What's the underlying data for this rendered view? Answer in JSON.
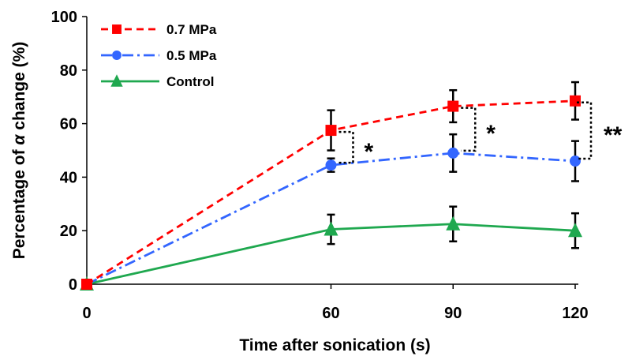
{
  "chart_data": {
    "type": "line",
    "xlabel": "Time after sonication (s)",
    "ylabel_prefix": "Percentage of ",
    "ylabel_symbol": "α",
    "ylabel_suffix": " change (%)",
    "x": [
      0,
      60,
      90,
      120
    ],
    "xticks": [
      "0",
      "60",
      "90",
      "120"
    ],
    "xlim": [
      0,
      120
    ],
    "ylim": [
      0,
      100
    ],
    "yticks": [
      "0",
      "20",
      "40",
      "60",
      "80",
      "100"
    ],
    "grid": false,
    "legend_position": "top-left",
    "series": [
      {
        "name": "0.7 MPa",
        "color": "#ff0000",
        "marker": "square",
        "line_style": "dashed",
        "values": [
          0,
          57.5,
          66.5,
          68.5
        ],
        "errors": [
          0,
          7.5,
          6,
          7
        ]
      },
      {
        "name": "0.5 MPa",
        "color": "#3366ff",
        "marker": "circle",
        "line_style": "dash-dot",
        "values": [
          0,
          44.5,
          49,
          46
        ],
        "errors": [
          0,
          2.5,
          7,
          7.5
        ]
      },
      {
        "name": "Control",
        "color": "#1fa84f",
        "marker": "triangle",
        "line_style": "solid",
        "values": [
          0,
          20.5,
          22.5,
          20
        ],
        "errors": [
          0,
          5.5,
          6.5,
          6.5
        ]
      }
    ],
    "significance": [
      {
        "x": 60,
        "label": "*"
      },
      {
        "x": 90,
        "label": "*"
      },
      {
        "x": 120,
        "label": "**"
      }
    ]
  }
}
